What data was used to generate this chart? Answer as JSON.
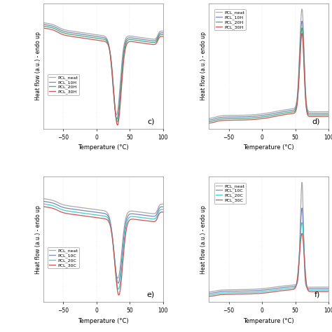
{
  "colors_H": [
    "#aaaaaa",
    "#7788bb",
    "#44aa77",
    "#cc5555"
  ],
  "colors_C": [
    "#aaaaaa",
    "#7788bb",
    "#44cccc",
    "#cc5555"
  ],
  "labels_H": [
    "PCL_neat",
    "PCL_10H",
    "PCL_20H",
    "PCL_30H"
  ],
  "labels_C": [
    "PCL_neat",
    "PCL_10C",
    "PCL_20C",
    "PCL_30C"
  ],
  "xlim": [
    -80,
    100
  ],
  "xlabel": "Temperature (°C)",
  "ylabel": "Heat flow (a.u.) - endo up",
  "line_width": 0.9,
  "bg_color": "#f0f0f0"
}
